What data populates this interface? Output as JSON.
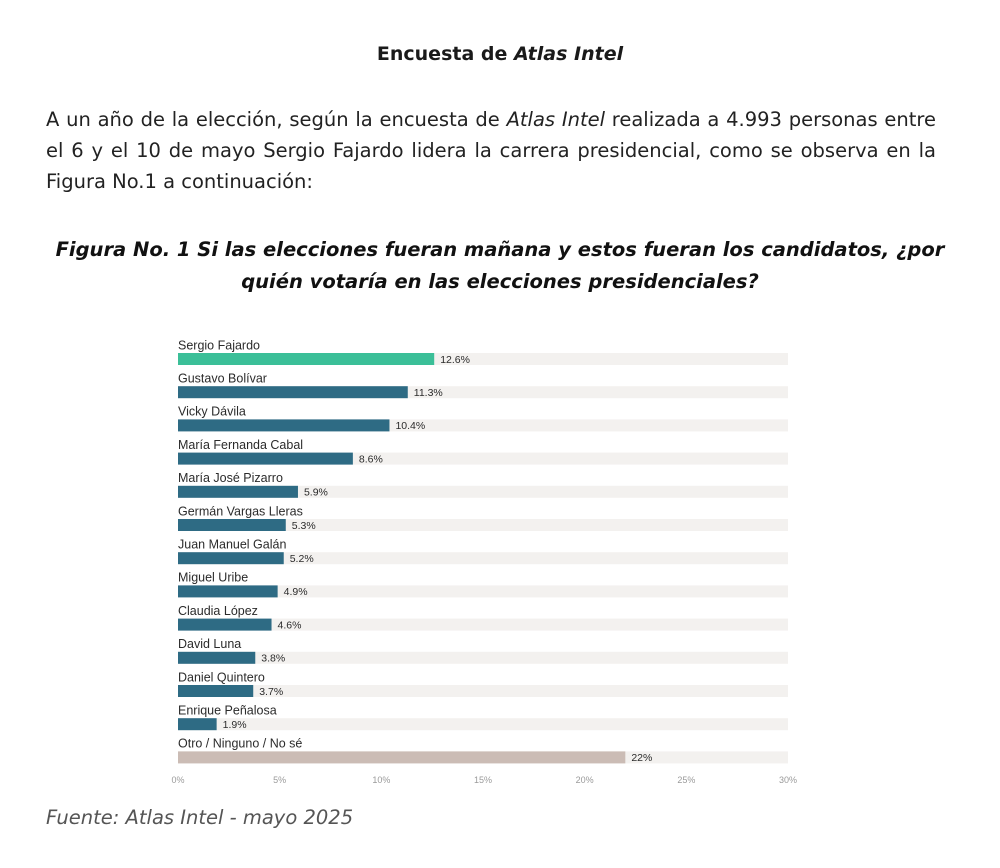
{
  "heading": {
    "prefix": "Encuesta de ",
    "emph": "Atlas Intel"
  },
  "intro": {
    "part1": "A un año de la elección, según la encuesta de ",
    "emph": "Atlas Intel",
    "part2": " realizada a 4.993 personas entre el 6 y el 10 de mayo Sergio Fajardo lidera la carrera presidencial, como se observa en la Figura No.1 a continuación:"
  },
  "figure_title": {
    "line1": "Figura No. 1 Si las elecciones fueran mañana y estos fueran los candidatos, ¿por",
    "line2": "quién votaría en las elecciones presidenciales?"
  },
  "source": "Fuente: Atlas Intel - mayo 2025",
  "colors": {
    "highlight": "#3bbf98",
    "bar": "#2e6b84",
    "other": "#cbbcb5",
    "track": "#f3f1ef"
  },
  "chart_data": {
    "type": "bar",
    "orientation": "horizontal",
    "categories": [
      "Sergio Fajardo",
      "Gustavo Bolívar",
      "Vicky Dávila",
      "María Fernanda Cabal",
      "María José Pizarro",
      "Germán Vargas Lleras",
      "Juan Manuel Galán",
      "Miguel Uribe",
      "Claudia López",
      "David Luna",
      "Daniel Quintero",
      "Enrique Peñalosa",
      "Otro / Ninguno / No sé"
    ],
    "values": [
      12.6,
      11.3,
      10.4,
      8.6,
      5.9,
      5.3,
      5.2,
      4.9,
      4.6,
      3.8,
      3.7,
      1.9,
      22
    ],
    "value_labels": [
      "12.6%",
      "11.3%",
      "10.4%",
      "8.6%",
      "5.9%",
      "5.3%",
      "5.2%",
      "4.9%",
      "4.6%",
      "3.8%",
      "3.7%",
      "1.9%",
      "22%"
    ],
    "bar_color_keys": [
      "highlight",
      "bar",
      "bar",
      "bar",
      "bar",
      "bar",
      "bar",
      "bar",
      "bar",
      "bar",
      "bar",
      "bar",
      "other"
    ],
    "xlim": [
      0,
      30
    ],
    "xticks": [
      0,
      5,
      10,
      15,
      20,
      25,
      30
    ],
    "xtick_labels": [
      "0%",
      "5%",
      "10%",
      "15%",
      "20%",
      "25%",
      "30%"
    ],
    "grid": false,
    "legend": "none"
  }
}
